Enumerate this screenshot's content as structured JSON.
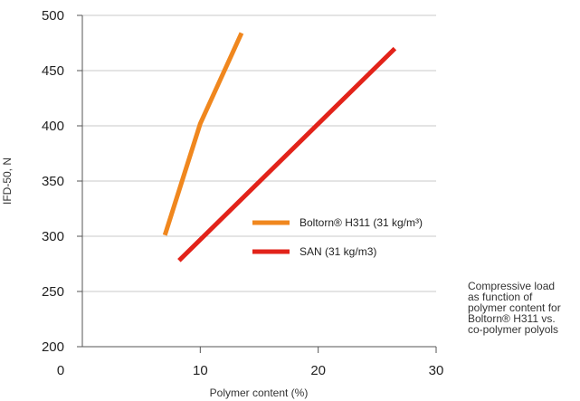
{
  "chart_data": {
    "type": "line",
    "xlabel": "Polymer content (%)",
    "ylabel": "IFD-50, N",
    "xlim": [
      0,
      30
    ],
    "ylim": [
      200,
      500
    ],
    "x_ticks": [
      "0",
      "10",
      "20",
      "30"
    ],
    "y_ticks": [
      "200",
      "250",
      "300",
      "350",
      "400",
      "450",
      "500"
    ],
    "grid": "horizontal",
    "legend_position": "right of center",
    "series": [
      {
        "name": "Boltorn® H311 (31 kg/m³)",
        "color": "#f0871e",
        "points": [
          [
            7,
            301
          ],
          [
            10,
            402
          ],
          [
            13.5,
            484
          ]
        ]
      },
      {
        "name": "SAN (31 kg/m3)",
        "color": "#e2231a",
        "points": [
          [
            8.2,
            278
          ],
          [
            26.5,
            470
          ]
        ]
      }
    ]
  },
  "caption_lines": [
    "Compressive load",
    "as function of",
    "polymer content for",
    "Boltorn® H311 vs.",
    "co-polymer polyols"
  ]
}
